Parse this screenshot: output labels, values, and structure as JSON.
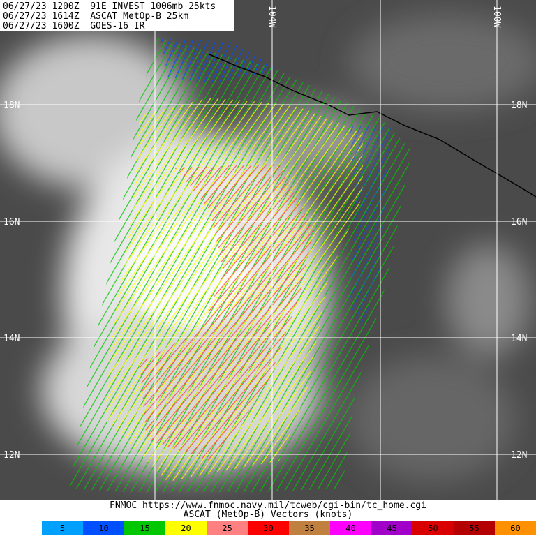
{
  "header": {
    "lines": [
      "06/27/23 1200Z  91E INVEST 1006mb 25kts",
      "06/27/23 1614Z  ASCAT MetOp-B 25km",
      "06/27/23 1600Z  GOES-16 IR"
    ]
  },
  "map": {
    "lon_labels": [
      "104W",
      "100W"
    ],
    "lat_labels": [
      "18N",
      "16N",
      "14N",
      "12N"
    ]
  },
  "footer": {
    "source": "FNMOC https://www.fnmoc.navy.mil/tcweb/cgi-bin/tc_home.cgi",
    "caption": "ASCAT (MetOp-B) Vectors (knots)"
  },
  "legend": {
    "items": [
      {
        "label": "5",
        "color": "#00a0ff"
      },
      {
        "label": "10",
        "color": "#0050ff"
      },
      {
        "label": "15",
        "color": "#00c800"
      },
      {
        "label": "20",
        "color": "#ffff00"
      },
      {
        "label": "25",
        "color": "#ff8080"
      },
      {
        "label": "30",
        "color": "#ff0000"
      },
      {
        "label": "35",
        "color": "#c08040"
      },
      {
        "label": "40",
        "color": "#ff00ff"
      },
      {
        "label": "45",
        "color": "#a000c8"
      },
      {
        "label": "50",
        "color": "#d80000"
      },
      {
        "label": "55",
        "color": "#b40000"
      },
      {
        "label": "60",
        "color": "#ff9000"
      }
    ]
  }
}
